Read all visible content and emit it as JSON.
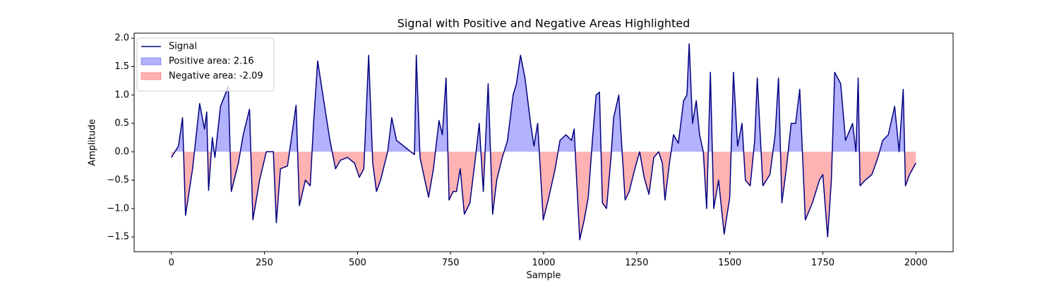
{
  "chart_data": {
    "type": "line",
    "title": "Signal with Positive and Negative Areas Highlighted",
    "xlabel": "Sample",
    "ylabel": "Amplitude",
    "x": [
      0,
      19,
      30,
      38,
      57,
      76,
      89,
      95,
      100,
      110,
      117,
      132,
      153,
      161,
      180,
      193,
      210,
      219,
      237,
      255,
      265,
      274,
      282,
      293,
      312,
      335,
      344,
      360,
      373,
      382,
      393,
      407,
      426,
      441,
      454,
      473,
      492,
      505,
      517,
      530,
      541,
      551,
      562,
      581,
      592,
      605,
      634,
      643,
      653,
      658,
      668,
      681,
      691,
      704,
      719,
      728,
      738,
      746,
      757,
      766,
      776,
      787,
      802,
      817,
      827,
      838,
      851,
      863,
      874,
      889,
      903,
      918,
      927,
      938,
      950,
      965,
      974,
      984,
      999,
      1014,
      1031,
      1044,
      1060,
      1075,
      1082,
      1088,
      1097,
      1109,
      1120,
      1131,
      1141,
      1150,
      1158,
      1169,
      1181,
      1188,
      1202,
      1209,
      1219,
      1230,
      1245,
      1258,
      1270,
      1283,
      1296,
      1309,
      1319,
      1326,
      1338,
      1349,
      1362,
      1376,
      1385,
      1391,
      1400,
      1410,
      1419,
      1429,
      1438,
      1448,
      1457,
      1470,
      1485,
      1500,
      1510,
      1521,
      1533,
      1542,
      1555,
      1567,
      1574,
      1589,
      1608,
      1622,
      1631,
      1640,
      1652,
      1665,
      1677,
      1688,
      1703,
      1722,
      1741,
      1750,
      1763,
      1773,
      1782,
      1798,
      1811,
      1830,
      1839,
      1845,
      1850,
      1864,
      1882,
      1898,
      1911,
      1926,
      1943,
      1955,
      1966,
      1972,
      1983,
      2000
    ],
    "series": [
      {
        "name": "Signal",
        "color": "#000080",
        "values": [
          -0.1,
          0.1,
          0.6,
          -1.12,
          -0.3,
          0.85,
          0.4,
          0.7,
          -0.68,
          0.25,
          -0.1,
          0.8,
          1.15,
          -0.7,
          -0.2,
          0.3,
          0.75,
          -1.2,
          -0.5,
          0.0,
          0.0,
          0.0,
          -1.25,
          -0.3,
          -0.25,
          0.82,
          -0.95,
          -0.5,
          -0.6,
          0.5,
          1.6,
          1.0,
          0.2,
          -0.3,
          -0.15,
          -0.1,
          -0.2,
          -0.45,
          -0.3,
          1.7,
          -0.2,
          -0.7,
          -0.5,
          0.0,
          0.6,
          0.2,
          0.05,
          0.0,
          -0.05,
          1.7,
          -0.1,
          -0.5,
          -0.8,
          -0.3,
          0.55,
          0.3,
          1.3,
          -0.85,
          -0.7,
          -0.7,
          -0.3,
          -1.1,
          -0.9,
          -0.1,
          0.5,
          -0.7,
          1.2,
          -1.1,
          -0.5,
          -0.1,
          0.2,
          1.0,
          1.2,
          1.7,
          1.3,
          0.5,
          0.1,
          0.5,
          -1.2,
          -0.8,
          -0.3,
          0.2,
          0.3,
          0.2,
          0.4,
          -0.4,
          -1.55,
          -1.2,
          -0.8,
          0.2,
          1.0,
          1.05,
          -0.9,
          -1.0,
          -0.1,
          0.6,
          1.0,
          0.2,
          -0.85,
          -0.7,
          -0.3,
          0.0,
          -0.45,
          -0.75,
          -0.1,
          0.0,
          -0.2,
          -0.85,
          -0.2,
          0.3,
          0.15,
          0.9,
          1.0,
          1.9,
          0.5,
          0.9,
          0.3,
          0.0,
          -1.0,
          1.4,
          -1.0,
          -0.5,
          -1.45,
          -0.8,
          1.4,
          0.1,
          0.5,
          -0.5,
          -0.6,
          0.2,
          1.3,
          -0.6,
          -0.4,
          0.3,
          1.3,
          -0.9,
          -0.3,
          0.5,
          0.5,
          1.1,
          -1.2,
          -0.9,
          -0.5,
          -0.4,
          -1.5,
          -0.5,
          1.4,
          1.2,
          0.2,
          0.5,
          0.0,
          1.3,
          -0.6,
          -0.5,
          -0.4,
          -0.1,
          0.2,
          0.3,
          0.8,
          0.0,
          1.1,
          -0.6,
          -0.4,
          -0.2
        ]
      }
    ],
    "fills": [
      {
        "name": "Positive area: 2.16",
        "color": "blue",
        "side": "above"
      },
      {
        "name": "Negative area: -2.09",
        "color": "red",
        "side": "below"
      }
    ],
    "fill_opacity": 0.3,
    "xlim": [
      -100,
      2100
    ],
    "xticks": [
      0,
      250,
      500,
      750,
      1000,
      1250,
      1500,
      1750,
      2000
    ],
    "ylim": [
      -1.76,
      2.09
    ],
    "yticks": [
      {
        "value": -1.5,
        "label": "−1.5"
      },
      {
        "value": -1.0,
        "label": "−1.0"
      },
      {
        "value": -0.5,
        "label": "−0.5"
      },
      {
        "value": 0.0,
        "label": "0.0"
      },
      0.5,
      {
        "value": 1.0,
        "label": "1.0"
      },
      1.5,
      {
        "value": 2.0,
        "label": "2.0"
      }
    ],
    "legend": "upper left"
  }
}
